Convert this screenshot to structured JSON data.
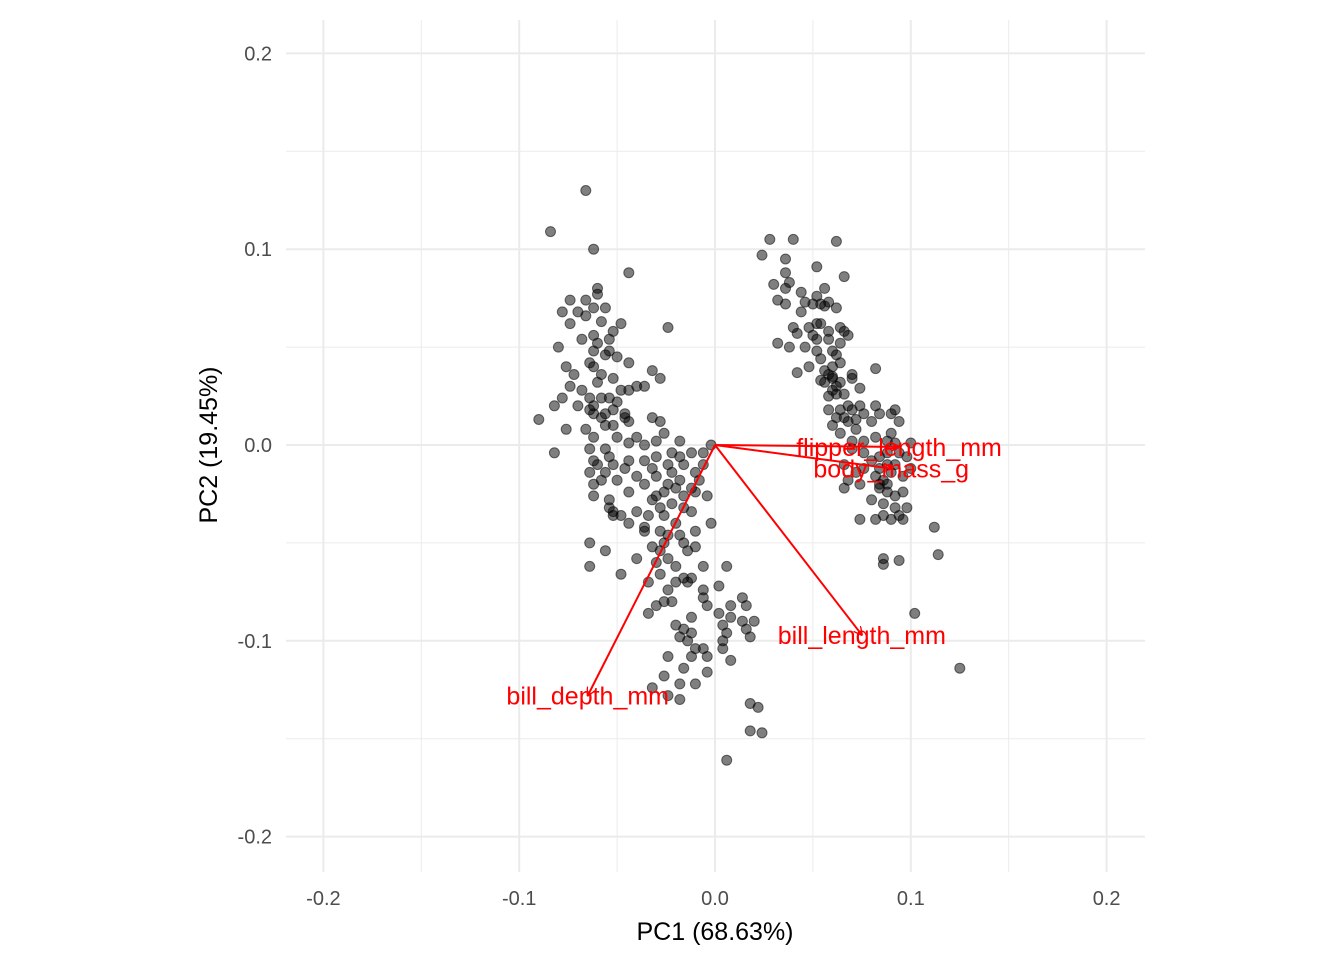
{
  "chart_data": {
    "type": "scatter",
    "title": "",
    "xlabel": "PC1 (68.63%)",
    "ylabel": "PC2 (19.45%)",
    "xlim": [
      -0.22,
      0.22
    ],
    "ylim": [
      -0.22,
      0.22
    ],
    "x_ticks": [
      {
        "value": -0.2,
        "label": "-0.2"
      },
      {
        "value": -0.1,
        "label": "-0.1"
      },
      {
        "value": 0.0,
        "label": "0.0"
      },
      {
        "value": 0.1,
        "label": "0.1"
      },
      {
        "value": 0.2,
        "label": "0.2"
      }
    ],
    "y_ticks": [
      {
        "value": 0.2,
        "label": "0.2"
      },
      {
        "value": 0.1,
        "label": "0.1"
      },
      {
        "value": 0.0,
        "label": "0.0"
      },
      {
        "value": -0.1,
        "label": "-0.1"
      },
      {
        "value": -0.2,
        "label": "-0.2"
      }
    ],
    "grid": true,
    "point_color": "#000000",
    "arrow_color": "#ff0000",
    "loadings": [
      {
        "name": "flipper_length_mm",
        "x": 0.094,
        "y": -0.001
      },
      {
        "name": "body_mass_g",
        "x": 0.09,
        "y": -0.012
      },
      {
        "name": "bill_length_mm",
        "x": 0.075,
        "y": -0.097
      },
      {
        "name": "bill_depth_mm",
        "x": -0.065,
        "y": -0.128
      }
    ],
    "points": [
      [
        -0.066,
        0.13
      ],
      [
        -0.084,
        0.109
      ],
      [
        -0.062,
        0.1
      ],
      [
        -0.044,
        0.088
      ],
      [
        -0.06,
        0.08
      ],
      [
        -0.06,
        0.077
      ],
      [
        -0.074,
        0.074
      ],
      [
        -0.066,
        0.074
      ],
      [
        -0.062,
        0.07
      ],
      [
        -0.056,
        0.07
      ],
      [
        -0.07,
        0.068
      ],
      [
        -0.078,
        0.068
      ],
      [
        -0.066,
        0.066
      ],
      [
        -0.058,
        0.063
      ],
      [
        -0.048,
        0.062
      ],
      [
        -0.074,
        0.062
      ],
      [
        -0.024,
        0.06
      ],
      [
        -0.052,
        0.058
      ],
      [
        -0.062,
        0.056
      ],
      [
        -0.054,
        0.054
      ],
      [
        -0.068,
        0.054
      ],
      [
        -0.06,
        0.052
      ],
      [
        -0.08,
        0.05
      ],
      [
        -0.062,
        0.048
      ],
      [
        -0.054,
        0.048
      ],
      [
        -0.05,
        0.045
      ],
      [
        -0.056,
        0.046
      ],
      [
        -0.064,
        0.042
      ],
      [
        -0.044,
        0.042
      ],
      [
        -0.076,
        0.04
      ],
      [
        -0.062,
        0.04
      ],
      [
        -0.058,
        0.036
      ],
      [
        -0.052,
        0.034
      ],
      [
        -0.06,
        0.032
      ],
      [
        -0.072,
        0.036
      ],
      [
        -0.032,
        0.038
      ],
      [
        -0.028,
        0.034
      ],
      [
        -0.036,
        0.03
      ],
      [
        -0.048,
        0.028
      ],
      [
        -0.044,
        0.028
      ],
      [
        -0.04,
        0.03
      ],
      [
        -0.068,
        0.028
      ],
      [
        -0.074,
        0.03
      ],
      [
        -0.064,
        0.024
      ],
      [
        -0.058,
        0.024
      ],
      [
        -0.054,
        0.024
      ],
      [
        -0.062,
        0.02
      ],
      [
        -0.05,
        0.022
      ],
      [
        -0.052,
        0.018
      ],
      [
        -0.056,
        0.016
      ],
      [
        -0.064,
        0.018
      ],
      [
        -0.07,
        0.02
      ],
      [
        -0.078,
        0.024
      ],
      [
        -0.082,
        0.02
      ],
      [
        -0.09,
        0.013
      ],
      [
        -0.058,
        0.014
      ],
      [
        -0.062,
        0.016
      ],
      [
        -0.046,
        0.014
      ],
      [
        -0.044,
        0.012
      ],
      [
        -0.032,
        0.014
      ],
      [
        -0.028,
        0.012
      ],
      [
        -0.046,
        0.016
      ],
      [
        -0.052,
        0.01
      ],
      [
        -0.056,
        0.01
      ],
      [
        -0.066,
        0.008
      ],
      [
        -0.076,
        0.008
      ],
      [
        -0.062,
        0.004
      ],
      [
        -0.05,
        0.004
      ],
      [
        -0.04,
        0.004
      ],
      [
        -0.026,
        0.006
      ],
      [
        -0.018,
        0.002
      ],
      [
        -0.03,
        0.002
      ],
      [
        -0.036,
        0.0
      ],
      [
        -0.044,
        0.001
      ],
      [
        -0.056,
        -0.002
      ],
      [
        -0.064,
        -0.002
      ],
      [
        -0.082,
        -0.004
      ],
      [
        -0.062,
        -0.008
      ],
      [
        -0.054,
        -0.006
      ],
      [
        -0.044,
        -0.008
      ],
      [
        -0.036,
        -0.008
      ],
      [
        -0.03,
        -0.006
      ],
      [
        -0.022,
        -0.004
      ],
      [
        -0.018,
        -0.006
      ],
      [
        -0.012,
        -0.004
      ],
      [
        -0.006,
        -0.004
      ],
      [
        -0.002,
        0.0
      ],
      [
        -0.06,
        -0.01
      ],
      [
        -0.052,
        -0.01
      ],
      [
        -0.046,
        -0.012
      ],
      [
        -0.032,
        -0.012
      ],
      [
        -0.024,
        -0.01
      ],
      [
        -0.016,
        -0.01
      ],
      [
        -0.064,
        -0.014
      ],
      [
        -0.056,
        -0.014
      ],
      [
        -0.04,
        -0.016
      ],
      [
        -0.03,
        -0.016
      ],
      [
        -0.022,
        -0.014
      ],
      [
        -0.01,
        -0.014
      ],
      [
        -0.006,
        -0.01
      ],
      [
        -0.05,
        -0.018
      ],
      [
        -0.036,
        -0.02
      ],
      [
        -0.024,
        -0.02
      ],
      [
        -0.018,
        -0.018
      ],
      [
        -0.008,
        -0.018
      ],
      [
        -0.062,
        -0.02
      ],
      [
        -0.058,
        -0.018
      ],
      [
        -0.044,
        -0.024
      ],
      [
        -0.026,
        -0.024
      ],
      [
        -0.02,
        -0.022
      ],
      [
        -0.01,
        -0.024
      ],
      [
        -0.062,
        -0.026
      ],
      [
        -0.054,
        -0.028
      ],
      [
        -0.03,
        -0.026
      ],
      [
        -0.016,
        -0.026
      ],
      [
        -0.004,
        -0.026
      ],
      [
        -0.032,
        -0.028
      ],
      [
        -0.022,
        -0.03
      ],
      [
        -0.012,
        -0.022
      ],
      [
        -0.054,
        -0.032
      ],
      [
        -0.052,
        -0.034
      ],
      [
        -0.04,
        -0.034
      ],
      [
        -0.028,
        -0.032
      ],
      [
        -0.016,
        -0.032
      ],
      [
        -0.052,
        -0.036
      ],
      [
        -0.048,
        -0.036
      ],
      [
        -0.034,
        -0.036
      ],
      [
        -0.026,
        -0.036
      ],
      [
        -0.012,
        -0.034
      ],
      [
        -0.044,
        -0.04
      ],
      [
        -0.036,
        -0.042
      ],
      [
        -0.02,
        -0.04
      ],
      [
        -0.028,
        -0.044
      ],
      [
        -0.024,
        -0.046
      ],
      [
        -0.018,
        -0.046
      ],
      [
        -0.01,
        -0.044
      ],
      [
        -0.002,
        -0.04
      ],
      [
        -0.036,
        -0.044
      ],
      [
        -0.016,
        -0.05
      ],
      [
        -0.026,
        -0.05
      ],
      [
        -0.01,
        -0.052
      ],
      [
        -0.032,
        -0.052
      ],
      [
        -0.028,
        -0.054
      ],
      [
        -0.014,
        -0.054
      ],
      [
        -0.064,
        -0.05
      ],
      [
        -0.056,
        -0.054
      ],
      [
        -0.024,
        -0.058
      ],
      [
        -0.04,
        -0.058
      ],
      [
        -0.03,
        -0.06
      ],
      [
        -0.02,
        -0.062
      ],
      [
        -0.006,
        -0.062
      ],
      [
        0.006,
        -0.062
      ],
      [
        -0.064,
        -0.062
      ],
      [
        -0.048,
        -0.066
      ],
      [
        -0.028,
        -0.066
      ],
      [
        -0.016,
        -0.068
      ],
      [
        -0.012,
        -0.068
      ],
      [
        -0.034,
        -0.07
      ],
      [
        -0.02,
        -0.07
      ],
      [
        -0.014,
        -0.07
      ],
      [
        0.002,
        -0.072
      ],
      [
        -0.006,
        -0.074
      ],
      [
        -0.024,
        -0.074
      ],
      [
        -0.006,
        -0.078
      ],
      [
        0.014,
        -0.078
      ],
      [
        -0.022,
        -0.08
      ],
      [
        -0.03,
        -0.082
      ],
      [
        -0.026,
        -0.08
      ],
      [
        -0.004,
        -0.082
      ],
      [
        0.008,
        -0.082
      ],
      [
        0.016,
        -0.082
      ],
      [
        0.008,
        -0.088
      ],
      [
        0.002,
        -0.086
      ],
      [
        -0.034,
        -0.086
      ],
      [
        -0.012,
        -0.088
      ],
      [
        0.014,
        -0.09
      ],
      [
        0.02,
        -0.09
      ],
      [
        -0.02,
        -0.092
      ],
      [
        0.004,
        -0.092
      ],
      [
        0.016,
        -0.094
      ],
      [
        -0.016,
        -0.094
      ],
      [
        -0.012,
        -0.096
      ],
      [
        0.006,
        -0.096
      ],
      [
        0.004,
        -0.1
      ],
      [
        -0.018,
        -0.098
      ],
      [
        0.018,
        -0.098
      ],
      [
        -0.014,
        -0.1
      ],
      [
        -0.01,
        -0.104
      ],
      [
        -0.006,
        -0.104
      ],
      [
        0.004,
        -0.104
      ],
      [
        -0.004,
        -0.108
      ],
      [
        -0.024,
        -0.108
      ],
      [
        -0.012,
        -0.108
      ],
      [
        0.008,
        -0.11
      ],
      [
        -0.016,
        -0.114
      ],
      [
        -0.004,
        -0.116
      ],
      [
        -0.026,
        -0.118
      ],
      [
        -0.018,
        -0.122
      ],
      [
        -0.01,
        -0.122
      ],
      [
        -0.032,
        -0.124
      ],
      [
        -0.024,
        -0.128
      ],
      [
        -0.018,
        -0.13
      ],
      [
        0.018,
        -0.132
      ],
      [
        0.022,
        -0.134
      ],
      [
        0.018,
        -0.146
      ],
      [
        0.024,
        -0.147
      ],
      [
        0.006,
        -0.161
      ],
      [
        0.028,
        0.105
      ],
      [
        0.04,
        0.105
      ],
      [
        0.062,
        0.104
      ],
      [
        0.024,
        0.097
      ],
      [
        0.036,
        0.095
      ],
      [
        0.036,
        0.088
      ],
      [
        0.052,
        0.091
      ],
      [
        0.066,
        0.086
      ],
      [
        0.038,
        0.083
      ],
      [
        0.03,
        0.082
      ],
      [
        0.036,
        0.08
      ],
      [
        0.044,
        0.078
      ],
      [
        0.056,
        0.08
      ],
      [
        0.052,
        0.076
      ],
      [
        0.046,
        0.073
      ],
      [
        0.032,
        0.074
      ],
      [
        0.036,
        0.072
      ],
      [
        0.05,
        0.072
      ],
      [
        0.054,
        0.072
      ],
      [
        0.058,
        0.073
      ],
      [
        0.056,
        0.071
      ],
      [
        0.062,
        0.07
      ],
      [
        0.044,
        0.068
      ],
      [
        0.048,
        0.06
      ],
      [
        0.054,
        0.062
      ],
      [
        0.064,
        0.06
      ],
      [
        0.04,
        0.06
      ],
      [
        0.058,
        0.058
      ],
      [
        0.066,
        0.058
      ],
      [
        0.052,
        0.062
      ],
      [
        0.042,
        0.057
      ],
      [
        0.068,
        0.056
      ],
      [
        0.05,
        0.056
      ],
      [
        0.058,
        0.054
      ],
      [
        0.064,
        0.052
      ],
      [
        0.032,
        0.052
      ],
      [
        0.038,
        0.05
      ],
      [
        0.046,
        0.05
      ],
      [
        0.052,
        0.048
      ],
      [
        0.06,
        0.048
      ],
      [
        0.052,
        0.054
      ],
      [
        0.062,
        0.046
      ],
      [
        0.054,
        0.044
      ],
      [
        0.048,
        0.04
      ],
      [
        0.064,
        0.042
      ],
      [
        0.06,
        0.04
      ],
      [
        0.056,
        0.038
      ],
      [
        0.058,
        0.036
      ],
      [
        0.06,
        0.035
      ],
      [
        0.042,
        0.037
      ],
      [
        0.07,
        0.036
      ],
      [
        0.082,
        0.039
      ],
      [
        0.06,
        0.034
      ],
      [
        0.056,
        0.032
      ],
      [
        0.07,
        0.034
      ],
      [
        0.064,
        0.032
      ],
      [
        0.062,
        0.03
      ],
      [
        0.054,
        0.033
      ],
      [
        0.06,
        0.028
      ],
      [
        0.074,
        0.029
      ],
      [
        0.062,
        0.026
      ],
      [
        0.066,
        0.026
      ],
      [
        0.058,
        0.025
      ],
      [
        0.068,
        0.02
      ],
      [
        0.074,
        0.02
      ],
      [
        0.082,
        0.02
      ],
      [
        0.092,
        0.018
      ],
      [
        0.064,
        0.018
      ],
      [
        0.076,
        0.016
      ],
      [
        0.07,
        0.018
      ],
      [
        0.058,
        0.018
      ],
      [
        0.062,
        0.014
      ],
      [
        0.066,
        0.014
      ],
      [
        0.072,
        0.013
      ],
      [
        0.084,
        0.016
      ],
      [
        0.09,
        0.016
      ],
      [
        0.094,
        0.012
      ],
      [
        0.068,
        0.012
      ],
      [
        0.08,
        0.012
      ],
      [
        0.06,
        0.01
      ],
      [
        0.072,
        0.008
      ],
      [
        0.064,
        0.006
      ],
      [
        0.082,
        0.004
      ],
      [
        0.09,
        0.006
      ],
      [
        0.07,
        0.002
      ],
      [
        0.076,
        0.002
      ],
      [
        0.088,
        0.002
      ],
      [
        0.092,
        0.001
      ],
      [
        0.1,
        0.001
      ],
      [
        0.07,
        -0.002
      ],
      [
        0.076,
        -0.004
      ],
      [
        0.084,
        -0.006
      ],
      [
        0.088,
        -0.004
      ],
      [
        0.094,
        -0.004
      ],
      [
        0.098,
        -0.006
      ],
      [
        0.08,
        -0.008
      ],
      [
        0.088,
        -0.01
      ],
      [
        0.092,
        -0.01
      ],
      [
        0.066,
        -0.01
      ],
      [
        0.076,
        -0.012
      ],
      [
        0.084,
        -0.012
      ],
      [
        0.09,
        -0.014
      ],
      [
        0.1,
        -0.012
      ],
      [
        0.072,
        -0.014
      ],
      [
        0.082,
        -0.016
      ],
      [
        0.086,
        -0.018
      ],
      [
        0.096,
        -0.016
      ],
      [
        0.068,
        -0.018
      ],
      [
        0.074,
        -0.02
      ],
      [
        0.084,
        -0.02
      ],
      [
        0.088,
        -0.02
      ],
      [
        0.066,
        -0.022
      ],
      [
        0.088,
        -0.024
      ],
      [
        0.084,
        -0.022
      ],
      [
        0.092,
        -0.026
      ],
      [
        0.096,
        -0.024
      ],
      [
        0.08,
        -0.028
      ],
      [
        0.086,
        -0.03
      ],
      [
        0.092,
        -0.032
      ],
      [
        0.098,
        -0.032
      ],
      [
        0.086,
        -0.036
      ],
      [
        0.094,
        -0.036
      ],
      [
        0.09,
        -0.038
      ],
      [
        0.082,
        -0.038
      ],
      [
        0.096,
        -0.038
      ],
      [
        0.074,
        -0.038
      ],
      [
        0.112,
        -0.042
      ],
      [
        0.086,
        -0.058
      ],
      [
        0.094,
        -0.059
      ],
      [
        0.086,
        -0.061
      ],
      [
        0.114,
        -0.056
      ],
      [
        0.102,
        -0.086
      ],
      [
        0.125,
        -0.114
      ]
    ]
  }
}
